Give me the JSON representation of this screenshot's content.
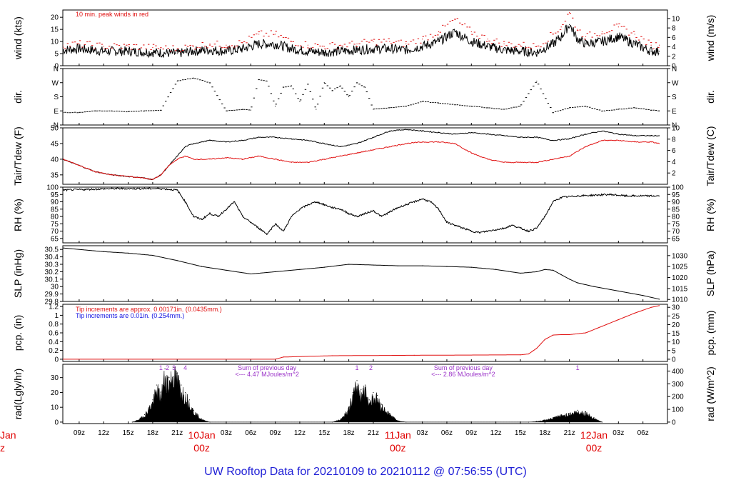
{
  "title": "UW Rooftop Data for 20210109  to  20210112 @ 07:56:55  (UTC)",
  "colors": {
    "trace": "#000000",
    "red": "#e01010",
    "blue": "#1010e0",
    "purple": "#9a30c8",
    "title": "#1f1fd6",
    "day": "#e00000"
  },
  "x_axis": {
    "hour_ticks": [
      "09z",
      "12z",
      "15z",
      "18z",
      "21z",
      "03z",
      "06z",
      "09z",
      "12z",
      "15z",
      "18z",
      "21z",
      "03z",
      "06z",
      "09z",
      "12z",
      "15z",
      "18z",
      "21z",
      "03z",
      "06z"
    ],
    "hour_tick_times": [
      9,
      12,
      15,
      18,
      21,
      27,
      30,
      33,
      36,
      39,
      42,
      45,
      51,
      54,
      57,
      60,
      63,
      66,
      69,
      75,
      78
    ],
    "days": [
      {
        "label": "10Jan",
        "sub": "00z",
        "time": 24
      },
      {
        "label": "11Jan",
        "sub": "00z",
        "time": 48
      },
      {
        "label": "12Jan",
        "sub": "00z",
        "time": 72
      }
    ],
    "edge_label": {
      "label": "Jan",
      "sub": "z"
    }
  },
  "chart_data": [
    {
      "id": "wind",
      "type": "line",
      "ylabel_left": "wind (kts)",
      "ylabel_right": "wind (m/s)",
      "ylim": [
        0,
        23
      ],
      "yticks_left": [
        0,
        5,
        10,
        15,
        20
      ],
      "right_ylim": [
        0,
        11.8
      ],
      "yticks_right": [
        0,
        2,
        4,
        6,
        8,
        10
      ],
      "annotation": "10 min. peak winds in red",
      "series": [
        {
          "style": "line",
          "color": "black",
          "x": [
            7,
            9,
            12,
            15,
            18,
            21,
            23,
            25,
            27,
            29,
            31,
            33,
            35,
            37,
            39,
            41,
            43,
            45,
            47,
            49,
            51,
            53,
            55,
            57,
            59,
            61,
            63,
            65,
            67,
            68,
            69,
            70,
            71,
            73,
            75,
            77,
            79,
            80
          ],
          "values": [
            6.5,
            7,
            6,
            6,
            5.5,
            5,
            6,
            6.5,
            6,
            7,
            9,
            9,
            7,
            6,
            5.5,
            6,
            6.5,
            7,
            7,
            6.5,
            8,
            10,
            14,
            10,
            8,
            6.5,
            6,
            5.5,
            9,
            12,
            17,
            11,
            9,
            10,
            12,
            9,
            6,
            6
          ]
        },
        {
          "style": "points",
          "color": "red",
          "x": [
            7,
            9,
            12,
            15,
            18,
            21,
            23,
            25,
            27,
            29,
            31,
            33,
            35,
            37,
            39,
            41,
            43,
            45,
            47,
            49,
            51,
            53,
            55,
            57,
            59,
            61,
            63,
            65,
            67,
            68,
            69,
            70,
            71,
            73,
            75,
            77,
            79,
            80
          ],
          "values": [
            8.5,
            9,
            8,
            8,
            7.5,
            7,
            8,
            9,
            8.5,
            9.5,
            13,
            13,
            10,
            8.5,
            8,
            8.5,
            9,
            10,
            10,
            9,
            11,
            14,
            19,
            14,
            11,
            9,
            8.5,
            8,
            13,
            16,
            22,
            15,
            12,
            14,
            16,
            13,
            8.5,
            8.5
          ]
        }
      ]
    },
    {
      "id": "dir",
      "type": "scatter",
      "ylabel_left": "dir.",
      "ylabel_right": "dir.",
      "yticks_labels": [
        "N",
        "E",
        "S",
        "W",
        "N"
      ],
      "ylim": [
        0,
        360
      ],
      "series": [
        {
          "style": "points",
          "color": "black",
          "x": [
            7,
            9,
            11,
            13,
            15,
            17,
            19,
            21,
            23,
            25,
            27,
            29,
            30,
            31,
            32,
            33,
            34,
            35,
            36,
            37,
            38,
            39,
            40,
            41,
            42,
            43,
            44,
            45,
            47,
            49,
            51,
            53,
            55,
            57,
            59,
            61,
            63,
            65,
            67,
            69,
            71,
            73,
            75,
            77,
            79,
            80
          ],
          "values": [
            80,
            80,
            90,
            90,
            85,
            90,
            95,
            280,
            300,
            270,
            90,
            100,
            95,
            290,
            280,
            120,
            240,
            250,
            150,
            260,
            100,
            270,
            220,
            250,
            180,
            270,
            240,
            100,
            110,
            120,
            150,
            140,
            130,
            120,
            110,
            100,
            120,
            280,
            80,
            110,
            120,
            90,
            100,
            110,
            95,
            90
          ]
        }
      ]
    },
    {
      "id": "temp",
      "type": "line",
      "ylabel_left": "Tair/Tdew (F)",
      "ylabel_right": "Tair/Tdew (C)",
      "ylim": [
        32,
        50
      ],
      "yticks_left": [
        35,
        40,
        45,
        50
      ],
      "right_ylim": [
        0,
        10
      ],
      "yticks_right": [
        2,
        4,
        6,
        8,
        10
      ],
      "series": [
        {
          "style": "line",
          "color": "black",
          "x": [
            7,
            9,
            11,
            13,
            15,
            17,
            18,
            19,
            20,
            21,
            22,
            23,
            25,
            27,
            29,
            31,
            33,
            35,
            37,
            39,
            41,
            43,
            45,
            47,
            49,
            51,
            53,
            55,
            57,
            59,
            61,
            63,
            65,
            67,
            69,
            71,
            73,
            75,
            77,
            79,
            80
          ],
          "values": [
            40,
            38,
            36,
            35,
            34.5,
            34,
            33.5,
            35,
            38,
            41,
            44,
            45,
            46,
            45.5,
            46,
            47,
            47,
            46.5,
            46,
            45,
            44,
            45,
            47,
            49,
            49.5,
            49,
            48.5,
            48,
            48.5,
            48,
            47.5,
            47,
            47,
            46,
            46.5,
            48,
            49,
            48,
            47.5,
            47.5,
            47.5
          ]
        },
        {
          "style": "line",
          "color": "red",
          "x": [
            7,
            9,
            11,
            13,
            15,
            17,
            18,
            19,
            20,
            21,
            22,
            23,
            25,
            27,
            29,
            31,
            33,
            35,
            37,
            39,
            41,
            43,
            45,
            47,
            49,
            51,
            53,
            55,
            57,
            59,
            61,
            63,
            65,
            67,
            69,
            71,
            73,
            75,
            77,
            79,
            80
          ],
          "values": [
            40,
            38,
            36,
            35,
            34.5,
            34,
            33.5,
            35,
            38,
            40,
            41,
            40,
            40,
            40.5,
            40,
            41,
            40,
            39,
            39,
            40,
            41,
            42,
            43,
            44,
            45,
            45.5,
            45.5,
            45,
            42,
            40,
            39,
            39,
            39,
            40,
            41,
            44,
            46,
            46,
            45.5,
            45.5,
            45
          ]
        }
      ]
    },
    {
      "id": "rh",
      "type": "line",
      "ylabel_left": "RH (%)",
      "ylabel_right": "RH (%)",
      "ylim": [
        62,
        100
      ],
      "yticks_left": [
        65,
        70,
        75,
        80,
        85,
        90,
        95,
        100
      ],
      "series": [
        {
          "style": "line",
          "color": "black",
          "x": [
            7,
            10,
            13,
            16,
            19,
            21,
            22,
            23,
            24,
            25,
            26,
            27,
            28,
            29,
            30,
            31,
            32,
            33,
            34,
            35,
            36,
            37,
            38,
            39,
            40,
            41,
            42,
            43,
            44,
            45,
            46,
            47,
            48,
            49,
            50,
            51,
            52,
            53,
            54,
            55,
            56,
            57,
            58,
            59,
            60,
            61,
            62,
            63,
            64,
            65,
            66,
            67,
            68,
            70,
            72,
            74,
            76,
            78,
            80
          ],
          "values": [
            98,
            98.5,
            99,
            99,
            99,
            98,
            90,
            80,
            78,
            82,
            80,
            85,
            90,
            80,
            76,
            72,
            68,
            75,
            70,
            80,
            85,
            88,
            90,
            88,
            86,
            85,
            82,
            80,
            82,
            84,
            80,
            83,
            86,
            88,
            90,
            92,
            90,
            85,
            76,
            74,
            72,
            70,
            69,
            70,
            71,
            72,
            74,
            72,
            70,
            72,
            80,
            90,
            93,
            94,
            94.5,
            95,
            94,
            94,
            94
          ]
        }
      ]
    },
    {
      "id": "slp",
      "type": "line",
      "ylabel_left": "SLP (inHg)",
      "ylabel_right": "SLP (hPa)",
      "ylim": [
        29.8,
        30.55
      ],
      "yticks_left": [
        29.8,
        29.9,
        30.0,
        30.1,
        30.2,
        30.3,
        30.4,
        30.5
      ],
      "right_ylim": [
        1009.1,
        1034.5
      ],
      "yticks_right": [
        1010,
        1015,
        1020,
        1025,
        1030
      ],
      "series": [
        {
          "style": "line",
          "color": "black",
          "x": [
            7,
            12,
            15,
            18,
            21,
            24,
            27,
            30,
            33,
            36,
            39,
            42,
            45,
            48,
            51,
            54,
            57,
            60,
            63,
            65,
            66,
            67,
            68,
            69,
            70,
            72,
            75,
            78,
            80
          ],
          "values": [
            30.52,
            30.47,
            30.45,
            30.42,
            30.35,
            30.27,
            30.22,
            30.17,
            30.2,
            30.23,
            30.26,
            30.3,
            30.29,
            30.28,
            30.28,
            30.27,
            30.26,
            30.23,
            30.18,
            30.2,
            30.23,
            30.22,
            30.16,
            30.1,
            30.05,
            30.0,
            29.94,
            29.88,
            29.83
          ]
        }
      ]
    },
    {
      "id": "pcp",
      "type": "line",
      "ylabel_left": "pcp. (in)",
      "ylabel_right": "pcp. (mm)",
      "ylim": [
        -0.05,
        1.25
      ],
      "yticks_left": [
        0.0,
        0.2,
        0.4,
        0.6,
        0.8,
        1.0,
        1.2
      ],
      "right_ylim": [
        -1.27,
        31.75
      ],
      "yticks_right": [
        0,
        5,
        10,
        15,
        20,
        25,
        30
      ],
      "annotations": [
        {
          "text": "Tip increments are approx. 0.00171in. (0.0435mm.)",
          "color": "red"
        },
        {
          "text": "Tip increments are 0.01in. (0.254mm.)",
          "color": "blue"
        }
      ],
      "series": [
        {
          "style": "line",
          "color": "red",
          "x": [
            7,
            33,
            34,
            40,
            50,
            63,
            64,
            65,
            66,
            67,
            68,
            69,
            71,
            73,
            75,
            77,
            79,
            80
          ],
          "values": [
            0,
            0,
            0.05,
            0.08,
            0.09,
            0.1,
            0.12,
            0.25,
            0.45,
            0.55,
            0.56,
            0.56,
            0.6,
            0.75,
            0.9,
            1.05,
            1.18,
            1.22
          ]
        }
      ]
    },
    {
      "id": "rad",
      "type": "area",
      "ylabel_left": "rad(Lgly/hr)",
      "ylabel_right": "rad (W/m^2)",
      "ylim": [
        -1,
        39
      ],
      "yticks_left": [
        0,
        10,
        20,
        30
      ],
      "right_ylim": [
        -11.6,
        453
      ],
      "yticks_right": [
        0,
        100,
        200,
        300,
        400
      ],
      "annotations": [
        {
          "text": "Sum of previous day",
          "sub": "<--- 4.47 MJoules/m^2",
          "time": 32
        },
        {
          "text": "Sum of previous day",
          "sub": "<--- 2.86 MJoules/m^2",
          "time": 56
        }
      ],
      "hour_marks": [
        {
          "text": "1",
          "time": 19
        },
        {
          "text": "2",
          "time": 19.8
        },
        {
          "text": "3",
          "time": 20.6
        },
        {
          "text": "4",
          "time": 22
        },
        {
          "text": "1",
          "time": 43
        },
        {
          "text": "2",
          "time": 44.7
        },
        {
          "text": "1",
          "time": 70
        }
      ],
      "series": [
        {
          "style": "area",
          "color": "black",
          "x": [
            15.5,
            16,
            17,
            18,
            18.5,
            19,
            19.5,
            20,
            20.5,
            21,
            21.5,
            22,
            22.5,
            23,
            24,
            25,
            40,
            41,
            42,
            42.5,
            43,
            43.5,
            44,
            44.5,
            45,
            45.5,
            46,
            47,
            48,
            49,
            64,
            65,
            66,
            67,
            68,
            69,
            70,
            71,
            72,
            73
          ],
          "values": [
            0,
            1,
            5,
            15,
            25,
            20,
            36,
            30,
            37,
            33,
            25,
            20,
            15,
            8,
            2,
            0,
            0,
            2,
            10,
            20,
            28,
            22,
            25,
            15,
            20,
            18,
            12,
            6,
            1,
            0,
            0,
            0.5,
            1.5,
            3,
            5,
            6,
            8,
            7,
            3,
            0
          ]
        }
      ]
    }
  ]
}
